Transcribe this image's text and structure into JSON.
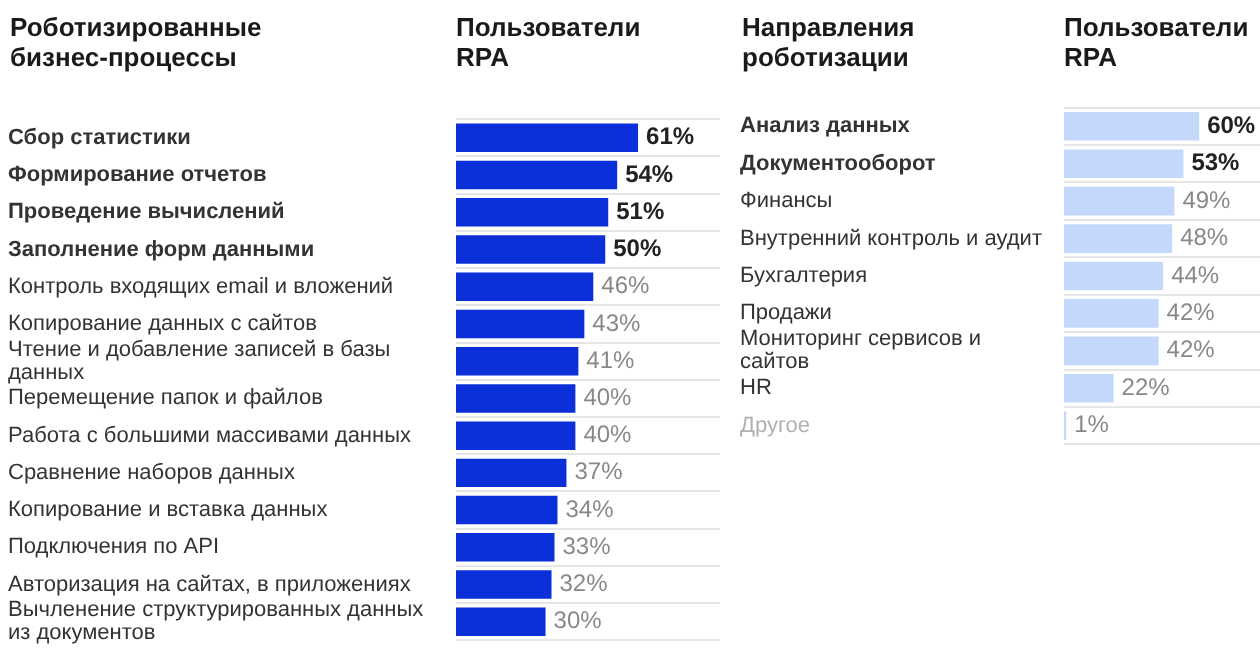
{
  "chart_data": [
    {
      "type": "bar",
      "orientation": "horizontal",
      "title": "Роботизированные бизнес-процессы",
      "xlabel": "Пользователи RPA",
      "categories": [
        "Сбор статистики",
        "Формирование отчетов",
        "Проведение вычислений",
        "Заполнение форм данными",
        "Контроль входящих email и вложений",
        "Копирование данных с сайтов",
        "Чтение и добавление записей в базы данных",
        "Перемещение папок и файлов",
        "Работа с большими массивами данных",
        "Сравнение наборов данных",
        "Копирование и вставка данных",
        "Подключения по API",
        "Авторизация на сайтах, в приложениях",
        "Вычленение структурированных данных из документов"
      ],
      "values": [
        61,
        54,
        51,
        50,
        46,
        43,
        41,
        40,
        40,
        37,
        34,
        33,
        32,
        30
      ],
      "value_labels": [
        "61%",
        "54%",
        "51%",
        "50%",
        "46%",
        "43%",
        "41%",
        "40%",
        "40%",
        "37%",
        "34%",
        "33%",
        "32%",
        "30%"
      ],
      "color": "#0b2fd8",
      "grid": "y"
    },
    {
      "type": "bar",
      "orientation": "horizontal",
      "title": "Направления роботизации",
      "xlabel": "Пользователи RPA",
      "categories": [
        "Анализ данных",
        "Документооборот",
        "Финансы",
        "Внутренний контроль и аудит",
        "Бухгалтерия",
        "Продажи",
        "Мониторинг сервисов и сайтов",
        "HR",
        "Другое"
      ],
      "values": [
        60,
        53,
        49,
        48,
        44,
        42,
        42,
        22,
        1
      ],
      "value_labels": [
        "60%",
        "53%",
        "49%",
        "48%",
        "44%",
        "42%",
        "42%",
        "22%",
        "1%"
      ],
      "color": "#c4d8fb",
      "grid": "y"
    }
  ]
}
